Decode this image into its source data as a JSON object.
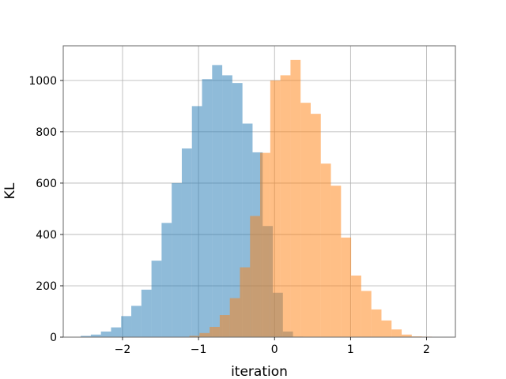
{
  "chart_data": {
    "type": "histogram",
    "title": "",
    "xlabel": "iteration",
    "ylabel": "KL",
    "xlim": [
      -2.78,
      2.38
    ],
    "ylim": [
      0,
      1135
    ],
    "xticks": [
      -2,
      -1,
      0,
      1,
      2
    ],
    "xtick_labels": [
      "−2",
      "−1",
      "0",
      "1",
      "2"
    ],
    "yticks": [
      0,
      200,
      400,
      600,
      800,
      1000
    ],
    "ytick_labels": [
      "0",
      "200",
      "400",
      "600",
      "800",
      "1000"
    ],
    "grid": true,
    "legend": "none",
    "bin_width": 0.133,
    "series": [
      {
        "color": "#1f77b4",
        "alpha": 0.5,
        "bin_start": -2.55,
        "counts": [
          5,
          10,
          22,
          38,
          82,
          122,
          185,
          298,
          445,
          600,
          735,
          900,
          1005,
          1060,
          1020,
          990,
          832,
          720,
          433,
          173,
          22,
          2
        ]
      },
      {
        "color": "#ff7f0e",
        "alpha": 0.5,
        "bin_start": -1.12,
        "counts": [
          5,
          16,
          40,
          86,
          152,
          272,
          472,
          718,
          1000,
          1020,
          1080,
          913,
          870,
          676,
          590,
          388,
          240,
          180,
          108,
          65,
          30,
          10,
          3,
          2
        ]
      }
    ]
  }
}
